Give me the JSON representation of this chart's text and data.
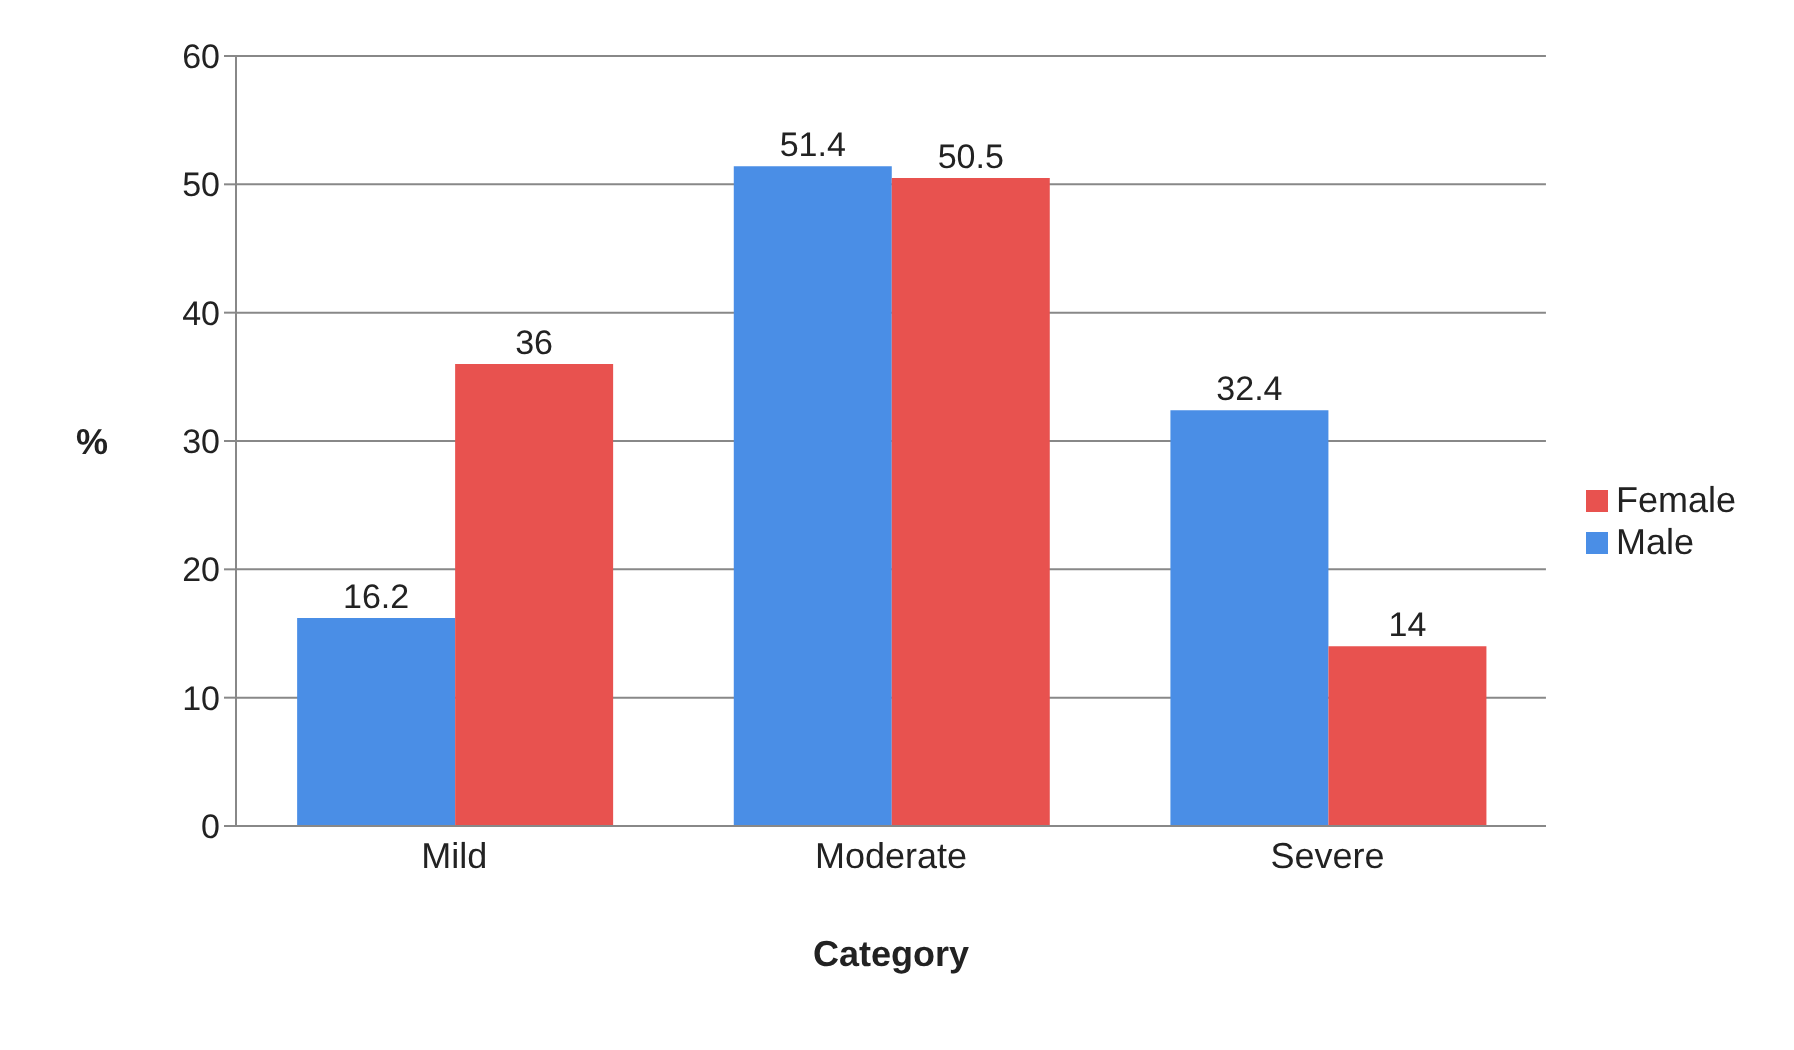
{
  "chart_data": {
    "type": "bar",
    "xlabel": "Category",
    "ylabel": "%",
    "categories": [
      "Mild",
      "Moderate",
      "Severe"
    ],
    "series": [
      {
        "name": "Male",
        "color": "#4a8ee6",
        "values": [
          16.2,
          51.4,
          32.4
        ]
      },
      {
        "name": "Female",
        "color": "#e8524f",
        "values": [
          36,
          50.5,
          14
        ]
      }
    ],
    "ylim": [
      0,
      60
    ],
    "yticks": [
      0,
      10,
      20,
      30,
      40,
      50,
      60
    ],
    "grid": "y",
    "legend": "right",
    "data_labels": true
  }
}
